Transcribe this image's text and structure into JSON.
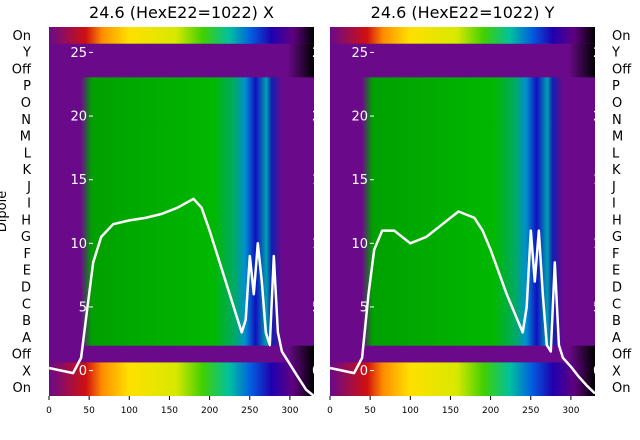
{
  "chart_data": [
    {
      "type": "heatmap",
      "title": "24.6 (HexE22=1022) X",
      "ylabel": "Dipole",
      "row_labels": [
        "On",
        "Y",
        "Off",
        "P",
        "O",
        "N",
        "M",
        "L",
        "K",
        "J",
        "I",
        "H",
        "G",
        "F",
        "E",
        "D",
        "C",
        "B",
        "A",
        "Off",
        "X",
        "On"
      ],
      "x_ticks": [
        0,
        50,
        100,
        150,
        200,
        250,
        300
      ],
      "xlim": [
        0,
        330
      ],
      "overlay_y_ticks": [
        0,
        5,
        10,
        15,
        20,
        25
      ],
      "overlay_ylim": [
        -2,
        27
      ],
      "overlay_line": {
        "x": [
          0,
          30,
          40,
          48,
          55,
          65,
          80,
          100,
          120,
          140,
          160,
          180,
          190,
          200,
          220,
          240,
          245,
          250,
          255,
          260,
          265,
          270,
          275,
          280,
          285,
          290,
          300,
          310,
          320,
          330
        ],
        "y": [
          0.2,
          -0.2,
          1,
          5,
          8.5,
          10.5,
          11.5,
          11.8,
          12,
          12.3,
          12.8,
          13.5,
          12.8,
          11,
          7,
          3,
          4,
          9,
          6,
          10,
          7,
          3,
          2,
          9,
          3,
          1.5,
          0.5,
          -0.5,
          -1.5,
          -2
        ]
      }
    },
    {
      "type": "heatmap",
      "title": "24.6 (HexE22=1022) Y",
      "row_labels": [
        "On",
        "Y",
        "Off",
        "P",
        "O",
        "N",
        "M",
        "L",
        "K",
        "J",
        "I",
        "H",
        "G",
        "F",
        "E",
        "D",
        "C",
        "B",
        "A",
        "Off",
        "X",
        "On"
      ],
      "x_ticks": [
        0,
        50,
        100,
        150,
        200,
        250,
        300
      ],
      "xlim": [
        0,
        330
      ],
      "overlay_y_ticks": [
        0,
        5,
        10,
        15,
        20,
        25
      ],
      "overlay_ylim": [
        -2,
        27
      ],
      "overlay_line": {
        "x": [
          0,
          30,
          40,
          48,
          55,
          65,
          80,
          100,
          120,
          140,
          160,
          180,
          190,
          200,
          220,
          240,
          245,
          250,
          255,
          260,
          265,
          270,
          275,
          280,
          285,
          290,
          300,
          310,
          320,
          330
        ],
        "y": [
          0.2,
          -0.2,
          1,
          6,
          9.5,
          11,
          11,
          10,
          10.5,
          11.5,
          12.5,
          12,
          11,
          9.5,
          6,
          3,
          5,
          11,
          7,
          11,
          6,
          2,
          1.5,
          8.5,
          2,
          1,
          0.3,
          -0.5,
          -1.2,
          -1.8
        ]
      }
    }
  ]
}
